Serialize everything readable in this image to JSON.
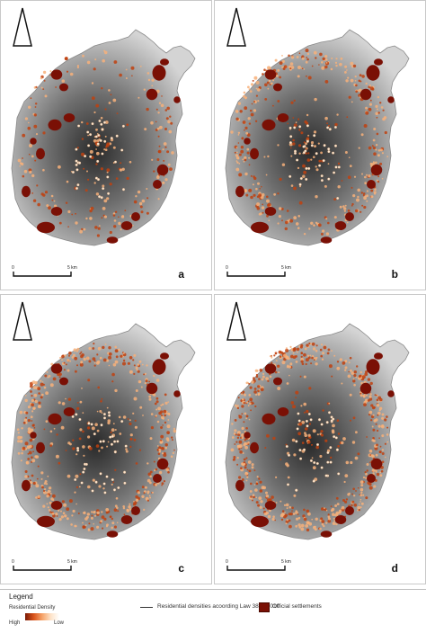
{
  "panels": [
    {
      "letter": "a",
      "density": 0.25
    },
    {
      "letter": "b",
      "density": 0.6
    },
    {
      "letter": "c",
      "density": 0.85
    },
    {
      "letter": "d",
      "density": 1.0
    }
  ],
  "scale_bar": {
    "start": "0",
    "end": "5 km"
  },
  "legend": {
    "title": "Legend",
    "density_label": "Residential Density",
    "high": "High",
    "low": "Low",
    "line_label": "Residential densities acoording Law 3889/2010",
    "settlements_label": "Official settlements"
  },
  "colors": {
    "settlement": "#7a1005",
    "density_high": "#c0410f",
    "density_low": "#f7b07a",
    "terrain_dark": "#2a2a2a",
    "terrain_light": "#d4d4d4"
  }
}
